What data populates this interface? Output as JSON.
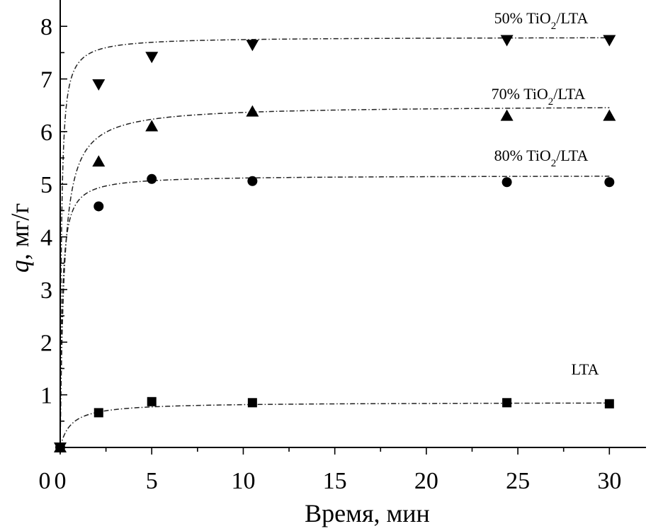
{
  "chart_data": {
    "type": "scatter",
    "xlabel": "Время, мин",
    "ylabel_symbol": "q",
    "ylabel_unit": ", мг/г",
    "xlim": [
      0,
      32
    ],
    "ylim": [
      0,
      8.5
    ],
    "xticks": [
      "0",
      "5",
      "10",
      "15",
      "20",
      "25",
      "30"
    ],
    "yticks": [
      "1",
      "2",
      "3",
      "4",
      "5",
      "6",
      "7",
      "8"
    ],
    "series": [
      {
        "label_prefix": "50% TiO",
        "label_sub": "2",
        "label_suffix": "/LTA",
        "marker": "triangle-down",
        "x": [
          0,
          2.1,
          5,
          10.5,
          24.4,
          30
        ],
        "y": [
          0,
          6.9,
          7.42,
          7.65,
          7.74,
          7.74
        ],
        "fit": {
          "qe": 7.8,
          "k": 1.9
        }
      },
      {
        "label_prefix": "70% TiO",
        "label_sub": "2",
        "label_suffix": "/LTA",
        "marker": "triangle-up",
        "x": [
          0,
          2.1,
          5,
          10.5,
          24.4,
          30
        ],
        "y": [
          0,
          5.43,
          6.1,
          6.38,
          6.3,
          6.3
        ],
        "fit": {
          "qe": 6.5,
          "k": 0.72
        }
      },
      {
        "label_prefix": "80% TiO",
        "label_sub": "2",
        "label_suffix": "/LTA",
        "marker": "circle",
        "x": [
          0,
          2.1,
          5,
          10.5,
          24.4,
          30
        ],
        "y": [
          0,
          4.58,
          5.1,
          5.06,
          5.04,
          5.04
        ],
        "fit": {
          "qe": 5.17,
          "k": 1.9
        }
      },
      {
        "label": "LTA",
        "marker": "square",
        "x": [
          0,
          2.1,
          5,
          10.5,
          24.4,
          30
        ],
        "y": [
          0,
          0.66,
          0.87,
          0.85,
          0.85,
          0.83
        ],
        "fit": {
          "qe": 0.86,
          "k": 2.0
        }
      }
    ]
  }
}
